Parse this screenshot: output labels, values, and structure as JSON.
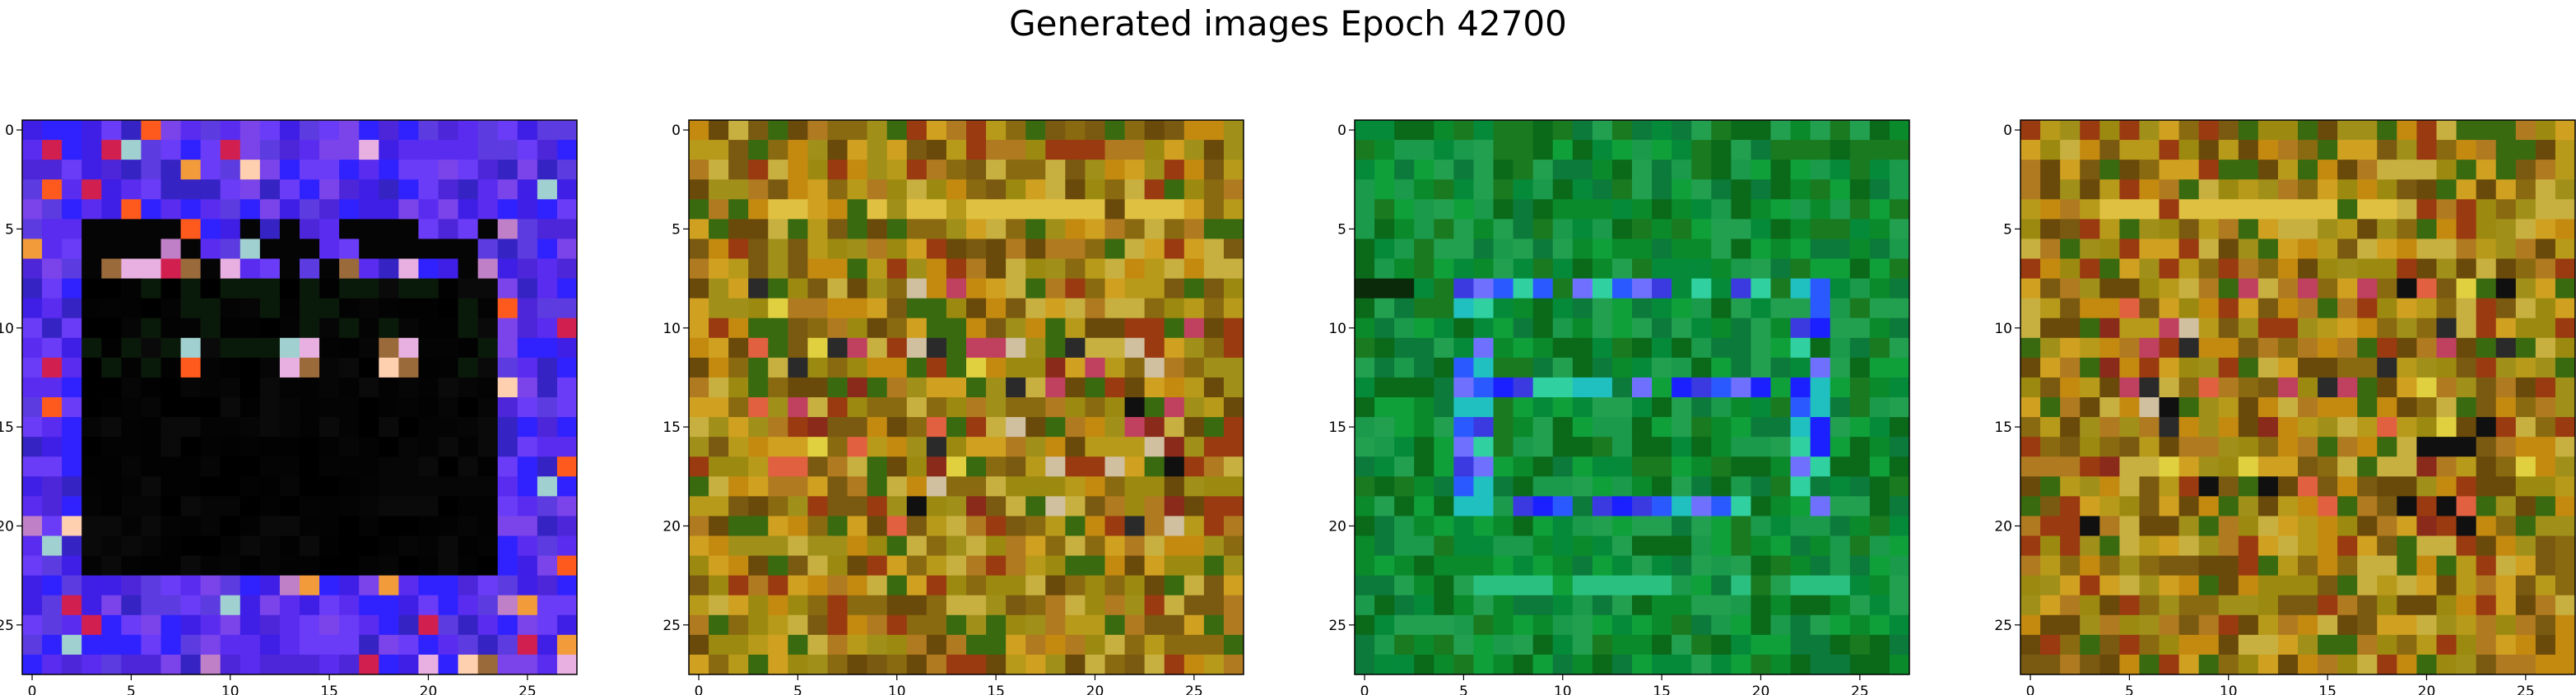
{
  "figure": {
    "title": "Generated images Epoch 42700"
  },
  "palette": {
    "blue_panel": [
      "#5a2cf0",
      "#3f1fe6",
      "#2f22ff",
      "#6a3cf7",
      "#4d26d9",
      "#7a44ea",
      "#3523c4",
      "#5c3be0"
    ],
    "dark_panel": [
      "#000000",
      "#030303",
      "#060606",
      "#0a0a0a",
      "#040404",
      "#020202"
    ],
    "highlight_panel": [
      "#c080c8",
      "#e8b0e0",
      "#f29b3a",
      "#ff5a1e",
      "#d12050",
      "#ffd0b0",
      "#a0d0d0",
      "#9a6a3a"
    ],
    "olive_panel": [
      "#b89a1a",
      "#c48a10",
      "#9c8a10",
      "#8a6a10",
      "#b07a20",
      "#d0a020",
      "#7a5a10",
      "#a0901a",
      "#c8b040",
      "#6a4a0a",
      "#9a3a10",
      "#3a6a10"
    ],
    "green_panel": [
      "#0a8a2a",
      "#0fa03a",
      "#1a7a20",
      "#058a3a",
      "#1a9a4a",
      "#0a6a1a",
      "#22a050",
      "#0c7a3a"
    ],
    "green_blue_accent": [
      "#1a20ff",
      "#2a5aff",
      "#3a3ae0",
      "#20c0c0",
      "#30d0a0",
      "#7070ff"
    ]
  },
  "chart_data": [
    {
      "type": "heatmap",
      "title": "",
      "xlabel": "",
      "ylabel": "",
      "shape": [
        28,
        28
      ],
      "xlim": [
        -0.5,
        27.5
      ],
      "ylim": [
        27.5,
        -0.5
      ],
      "xticks": [
        0,
        5,
        10,
        15,
        20,
        25
      ],
      "yticks": [
        0,
        5,
        10,
        15,
        20,
        25
      ],
      "xtick_labels": [
        "0",
        "5",
        "10",
        "15",
        "20",
        "25"
      ],
      "ytick_labels": [
        "0",
        "5",
        "10",
        "15",
        "20",
        "25"
      ],
      "dominant_color": "blue-violet border, black interior",
      "grid": false
    },
    {
      "type": "heatmap",
      "title": "",
      "xlabel": "",
      "ylabel": "",
      "shape": [
        28,
        28
      ],
      "xlim": [
        -0.5,
        27.5
      ],
      "ylim": [
        27.5,
        -0.5
      ],
      "xticks": [
        0,
        5,
        10,
        15,
        20,
        25
      ],
      "yticks": [
        0,
        5,
        10,
        15,
        20,
        25
      ],
      "xtick_labels": [
        "0",
        "5",
        "10",
        "15",
        "20",
        "25"
      ],
      "ytick_labels": [
        "0",
        "5",
        "10",
        "15",
        "20",
        "25"
      ],
      "dominant_color": "olive / mustard noise",
      "grid": false
    },
    {
      "type": "heatmap",
      "title": "",
      "xlabel": "",
      "ylabel": "",
      "shape": [
        28,
        28
      ],
      "xlim": [
        -0.5,
        27.5
      ],
      "ylim": [
        27.5,
        -0.5
      ],
      "xticks": [
        0,
        5,
        10,
        15,
        20,
        25
      ],
      "yticks": [
        0,
        5,
        10,
        15,
        20,
        25
      ],
      "xtick_labels": [
        "0",
        "5",
        "10",
        "15",
        "20",
        "25"
      ],
      "ytick_labels": [
        "0",
        "5",
        "10",
        "15",
        "20",
        "25"
      ],
      "dominant_color": "green with blue centre",
      "grid": false
    },
    {
      "type": "heatmap",
      "title": "",
      "xlabel": "",
      "ylabel": "",
      "shape": [
        28,
        28
      ],
      "xlim": [
        -0.5,
        27.5
      ],
      "ylim": [
        27.5,
        -0.5
      ],
      "xticks": [
        0,
        5,
        10,
        15,
        20,
        25
      ],
      "yticks": [
        0,
        5,
        10,
        15,
        20,
        25
      ],
      "xtick_labels": [
        "0",
        "5",
        "10",
        "15",
        "20",
        "25"
      ],
      "ytick_labels": [
        "0",
        "5",
        "10",
        "15",
        "20",
        "25"
      ],
      "dominant_color": "olive / mustard noise",
      "grid": false
    }
  ]
}
